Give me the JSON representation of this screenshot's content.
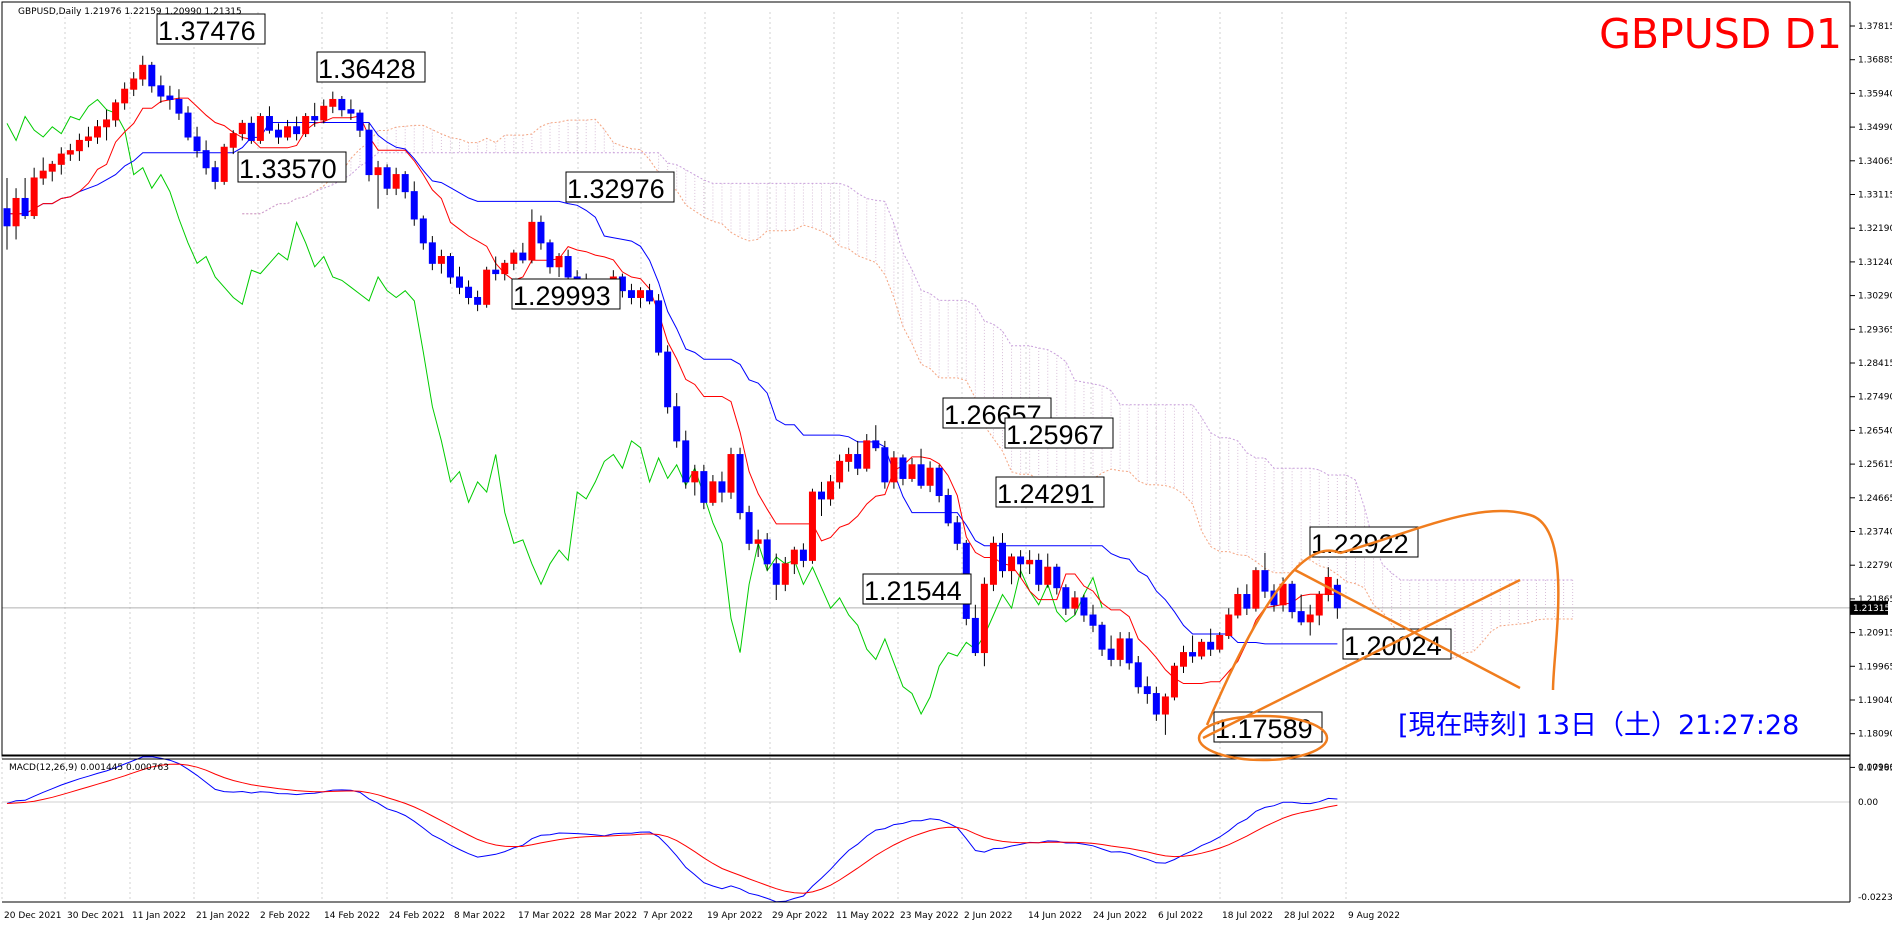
{
  "window": {
    "symbol_info": "GBPUSD,Daily  1.21976 1.22159 1.20990 1.21315",
    "chart_label": "GBPUSD D1",
    "current_time": "[現在時刻] 13日（土）21:27:28",
    "price_tag": "1.21315"
  },
  "macd": {
    "label": "MACD(12,26,9) 0.001445 0.000763",
    "y_labels": [
      "0.009901",
      "0.00",
      "-0.02238"
    ]
  },
  "colors": {
    "bull": "#ff0000",
    "bear": "#0000ff",
    "tenkan": "#ff0000",
    "kijun": "#0000ff",
    "chikou": "#00cc00",
    "cloud": "#d8bfd8",
    "annotation": "#f07d1e",
    "title": "#ff0000",
    "time": "#0000ff"
  },
  "chart_data": {
    "type": "candlestick",
    "y_axis_labels": [
      "1.37815",
      "1.36885",
      "1.35940",
      "1.34990",
      "1.34065",
      "1.33115",
      "1.32190",
      "1.31240",
      "1.30290",
      "1.29365",
      "1.28415",
      "1.27490",
      "1.26540",
      "1.25615",
      "1.24665",
      "1.23740",
      "1.22790",
      "1.21865",
      "1.20915",
      "1.19965",
      "1.19040",
      "1.18090",
      "1.17165"
    ],
    "x_axis_labels": [
      "20 Dec 2021",
      "30 Dec 2021",
      "11 Jan 2022",
      "21 Jan 2022",
      "2 Feb 2022",
      "14 Feb 2022",
      "24 Feb 2022",
      "8 Mar 2022",
      "17 Mar 2022",
      "28 Mar 2022",
      "7 Apr 2022",
      "19 Apr 2022",
      "29 Apr 2022",
      "11 May 2022",
      "23 May 2022",
      "2 Jun 2022",
      "14 Jun 2022",
      "24 Jun 2022",
      "6 Jul 2022",
      "18 Jul 2022",
      "28 Jul 2022",
      "9 Aug 2022"
    ],
    "price_labels": [
      "1.37476",
      "1.36428",
      "1.33570",
      "1.32976",
      "1.29993",
      "1.26657",
      "1.25967",
      "1.24291",
      "1.21544",
      "1.22922",
      "1.20024",
      "1.17589"
    ],
    "candles": [
      [
        1.33,
        1.339,
        1.318,
        1.325
      ],
      [
        1.325,
        1.336,
        1.321,
        1.333
      ],
      [
        1.333,
        1.339,
        1.327,
        1.328
      ],
      [
        1.328,
        1.342,
        1.327,
        1.339
      ],
      [
        1.339,
        1.345,
        1.337,
        1.341
      ],
      [
        1.341,
        1.344,
        1.338,
        1.343
      ],
      [
        1.343,
        1.348,
        1.34,
        1.346
      ],
      [
        1.346,
        1.349,
        1.344,
        1.347
      ],
      [
        1.347,
        1.352,
        1.344,
        1.35
      ],
      [
        1.35,
        1.354,
        1.348,
        1.351
      ],
      [
        1.351,
        1.356,
        1.349,
        1.354
      ],
      [
        1.354,
        1.359,
        1.35,
        1.356
      ],
      [
        1.356,
        1.362,
        1.354,
        1.361
      ],
      [
        1.361,
        1.367,
        1.359,
        1.365
      ],
      [
        1.365,
        1.37,
        1.363,
        1.368
      ],
      [
        1.368,
        1.3748,
        1.366,
        1.372
      ],
      [
        1.372,
        1.373,
        1.364,
        1.366
      ],
      [
        1.366,
        1.369,
        1.361,
        1.363
      ],
      [
        1.363,
        1.366,
        1.359,
        1.362
      ],
      [
        1.362,
        1.365,
        1.356,
        1.358
      ],
      [
        1.358,
        1.36,
        1.35,
        1.351
      ],
      [
        1.351,
        1.354,
        1.345,
        1.347
      ],
      [
        1.347,
        1.35,
        1.34,
        1.342
      ],
      [
        1.342,
        1.344,
        1.3357,
        1.338
      ],
      [
        1.338,
        1.349,
        1.337,
        1.348
      ],
      [
        1.348,
        1.353,
        1.346,
        1.352
      ],
      [
        1.352,
        1.356,
        1.35,
        1.355
      ],
      [
        1.355,
        1.357,
        1.349,
        1.35
      ],
      [
        1.35,
        1.358,
        1.349,
        1.357
      ],
      [
        1.357,
        1.36,
        1.352,
        1.353
      ],
      [
        1.353,
        1.355,
        1.349,
        1.351
      ],
      [
        1.351,
        1.356,
        1.35,
        1.354
      ],
      [
        1.354,
        1.357,
        1.35,
        1.352
      ],
      [
        1.352,
        1.358,
        1.351,
        1.357
      ],
      [
        1.357,
        1.361,
        1.354,
        1.356
      ],
      [
        1.356,
        1.362,
        1.355,
        1.36
      ],
      [
        1.36,
        1.3643,
        1.358,
        1.362
      ],
      [
        1.362,
        1.363,
        1.357,
        1.359
      ],
      [
        1.359,
        1.362,
        1.356,
        1.358
      ],
      [
        1.358,
        1.359,
        1.351,
        1.353
      ],
      [
        1.353,
        1.355,
        1.338,
        1.34
      ],
      [
        1.34,
        1.344,
        1.33,
        1.342
      ],
      [
        1.342,
        1.343,
        1.334,
        1.336
      ],
      [
        1.336,
        1.342,
        1.334,
        1.34
      ],
      [
        1.34,
        1.341,
        1.333,
        1.335
      ],
      [
        1.335,
        1.338,
        1.325,
        1.327
      ],
      [
        1.327,
        1.328,
        1.318,
        1.32
      ],
      [
        1.32,
        1.322,
        1.312,
        1.314
      ],
      [
        1.314,
        1.318,
        1.311,
        1.316
      ],
      [
        1.316,
        1.317,
        1.308,
        1.31
      ],
      [
        1.31,
        1.313,
        1.305,
        1.307
      ],
      [
        1.307,
        1.309,
        1.302,
        1.304
      ],
      [
        1.304,
        1.306,
        1.3,
        1.302
      ],
      [
        1.302,
        1.313,
        1.301,
        1.312
      ],
      [
        1.312,
        1.316,
        1.309,
        1.311
      ],
      [
        1.311,
        1.315,
        1.309,
        1.314
      ],
      [
        1.314,
        1.318,
        1.312,
        1.317
      ],
      [
        1.317,
        1.32,
        1.314,
        1.315
      ],
      [
        1.315,
        1.3298,
        1.314,
        1.326
      ],
      [
        1.326,
        1.328,
        1.318,
        1.32
      ],
      [
        1.32,
        1.321,
        1.311,
        1.313
      ],
      [
        1.313,
        1.317,
        1.31,
        1.316
      ],
      [
        1.316,
        1.318,
        1.308,
        1.31
      ],
      [
        1.31,
        1.312,
        1.306,
        1.309
      ],
      [
        1.309,
        1.311,
        1.305,
        1.307
      ],
      [
        1.307,
        1.309,
        1.303,
        1.305
      ],
      [
        1.305,
        1.308,
        1.302,
        1.303
      ],
      [
        1.303,
        1.312,
        1.302,
        1.31
      ],
      [
        1.31,
        1.311,
        1.304,
        1.306
      ],
      [
        1.306,
        1.308,
        1.302,
        1.304
      ],
      [
        1.304,
        1.307,
        1.301,
        1.306
      ],
      [
        1.306,
        1.308,
        1.302,
        1.303
      ],
      [
        1.303,
        1.305,
        1.287,
        1.288
      ],
      [
        1.288,
        1.29,
        1.27,
        1.272
      ],
      [
        1.272,
        1.276,
        1.26,
        1.262
      ],
      [
        1.262,
        1.265,
        1.248,
        1.25
      ],
      [
        1.25,
        1.255,
        1.246,
        1.253
      ],
      [
        1.253,
        1.255,
        1.242,
        1.244
      ],
      [
        1.244,
        1.252,
        1.243,
        1.25
      ],
      [
        1.25,
        1.253,
        1.244,
        1.247
      ],
      [
        1.247,
        1.26,
        1.245,
        1.258
      ],
      [
        1.258,
        1.26,
        1.239,
        1.241
      ],
      [
        1.241,
        1.243,
        1.23,
        1.232
      ],
      [
        1.232,
        1.236,
        1.228,
        1.233
      ],
      [
        1.233,
        1.235,
        1.224,
        1.226
      ],
      [
        1.226,
        1.229,
        1.2154,
        1.22
      ],
      [
        1.22,
        1.228,
        1.218,
        1.226
      ],
      [
        1.226,
        1.231,
        1.223,
        1.23
      ],
      [
        1.23,
        1.232,
        1.225,
        1.227
      ],
      [
        1.227,
        1.248,
        1.226,
        1.247
      ],
      [
        1.247,
        1.25,
        1.24,
        1.245
      ],
      [
        1.245,
        1.252,
        1.243,
        1.25
      ],
      [
        1.25,
        1.258,
        1.248,
        1.256
      ],
      [
        1.256,
        1.26,
        1.253,
        1.258
      ],
      [
        1.258,
        1.262,
        1.252,
        1.254
      ],
      [
        1.254,
        1.264,
        1.253,
        1.262
      ],
      [
        1.262,
        1.2666,
        1.259,
        1.26
      ],
      [
        1.26,
        1.262,
        1.248,
        1.25
      ],
      [
        1.25,
        1.259,
        1.248,
        1.257
      ],
      [
        1.257,
        1.258,
        1.249,
        1.251
      ],
      [
        1.251,
        1.257,
        1.25,
        1.255
      ],
      [
        1.255,
        1.2597,
        1.248,
        1.249
      ],
      [
        1.249,
        1.256,
        1.247,
        1.254
      ],
      [
        1.254,
        1.255,
        1.244,
        1.246
      ],
      [
        1.246,
        1.248,
        1.237,
        1.238
      ],
      [
        1.238,
        1.24,
        1.23,
        1.232
      ],
      [
        1.232,
        1.233,
        1.208,
        1.21
      ],
      [
        1.21,
        1.214,
        1.199,
        1.2
      ],
      [
        1.2,
        1.222,
        1.196,
        1.22
      ],
      [
        1.22,
        1.234,
        1.218,
        1.232
      ],
      [
        1.232,
        1.235,
        1.222,
        1.224
      ],
      [
        1.224,
        1.229,
        1.22,
        1.228
      ],
      [
        1.228,
        1.23,
        1.222,
        1.226
      ],
      [
        1.226,
        1.23,
        1.223,
        1.227
      ],
      [
        1.227,
        1.229,
        1.218,
        1.22
      ],
      [
        1.22,
        1.229,
        1.219,
        1.225
      ],
      [
        1.225,
        1.226,
        1.217,
        1.219
      ],
      [
        1.219,
        1.22,
        1.211,
        1.213
      ],
      [
        1.213,
        1.218,
        1.211,
        1.216
      ],
      [
        1.216,
        1.217,
        1.209,
        1.211
      ],
      [
        1.211,
        1.214,
        1.206,
        1.208
      ],
      [
        1.208,
        1.209,
        1.199,
        1.201
      ],
      [
        1.201,
        1.205,
        1.196,
        1.198
      ],
      [
        1.198,
        1.206,
        1.196,
        1.204
      ],
      [
        1.204,
        1.206,
        1.195,
        1.197
      ],
      [
        1.197,
        1.199,
        1.188,
        1.19
      ],
      [
        1.19,
        1.193,
        1.185,
        1.188
      ],
      [
        1.188,
        1.19,
        1.18,
        1.182
      ],
      [
        1.182,
        1.188,
        1.1759,
        1.187
      ],
      [
        1.187,
        1.197,
        1.186,
        1.196
      ],
      [
        1.196,
        1.202,
        1.194,
        1.2
      ],
      [
        1.2,
        1.205,
        1.197,
        1.199
      ],
      [
        1.199,
        1.204,
        1.198,
        1.203
      ],
      [
        1.203,
        1.207,
        1.199,
        1.201
      ],
      [
        1.201,
        1.206,
        1.2,
        1.205
      ],
      [
        1.205,
        1.213,
        1.204,
        1.211
      ],
      [
        1.211,
        1.219,
        1.21,
        1.217
      ],
      [
        1.217,
        1.22,
        1.211,
        1.213
      ],
      [
        1.213,
        1.225,
        1.212,
        1.224
      ],
      [
        1.224,
        1.2292,
        1.216,
        1.218
      ],
      [
        1.218,
        1.22,
        1.212,
        1.214
      ],
      [
        1.214,
        1.222,
        1.212,
        1.22
      ],
      [
        1.22,
        1.221,
        1.21,
        1.212
      ],
      [
        1.212,
        1.217,
        1.208,
        1.209
      ],
      [
        1.209,
        1.214,
        1.205,
        1.211
      ],
      [
        1.211,
        1.218,
        1.208,
        1.217
      ],
      [
        1.217,
        1.225,
        1.215,
        1.222
      ],
      [
        1.2197,
        1.2216,
        1.2099,
        1.2131
      ]
    ]
  }
}
